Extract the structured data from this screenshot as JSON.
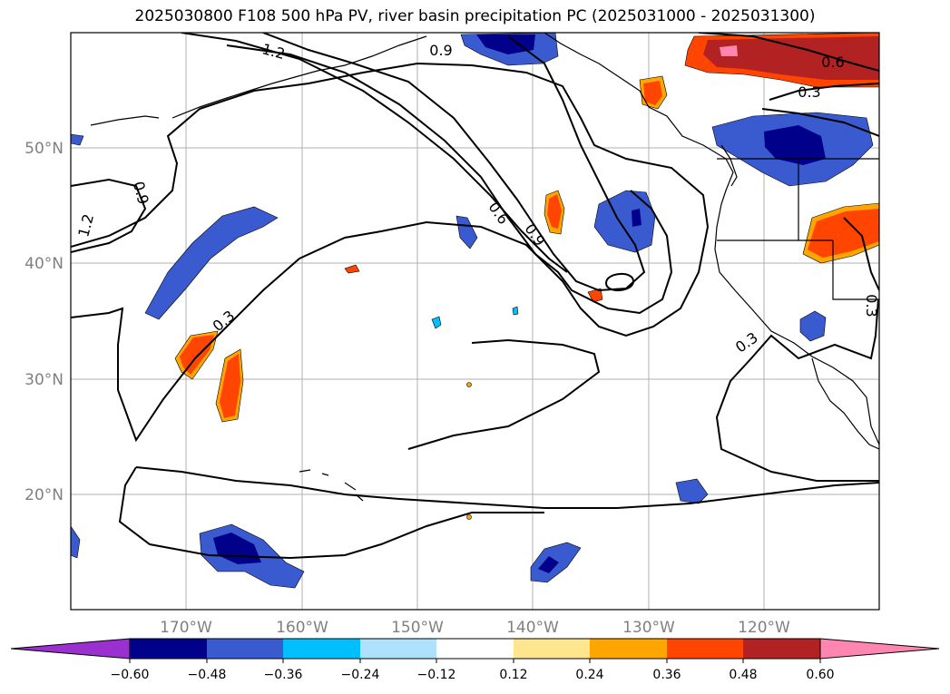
{
  "title": "2025030800 F108 500 hPa PV, river basin precipitation PC (2025031000 - 2025031300)",
  "map": {
    "lon_labels": [
      "170°W",
      "160°W",
      "150°W",
      "140°W",
      "130°W",
      "120°W"
    ],
    "lat_labels": [
      "50°N",
      "40°N",
      "30°N",
      "20°N"
    ],
    "contour_labels": [
      "1.2",
      "0.9",
      "0.9",
      "1.2",
      "0.3",
      "0.6",
      "0.9",
      "0.6",
      "0.3",
      "0.3",
      "0.3"
    ]
  },
  "colorbar": {
    "ticks": [
      "−0.60",
      "−0.48",
      "−0.36",
      "−0.24",
      "−0.12",
      "0.12",
      "0.24",
      "0.36",
      "0.48",
      "0.60"
    ],
    "colors": [
      "#9b30d0",
      "#00008b",
      "#3a5bd0",
      "#00bfff",
      "#aee1fb",
      "#ffffff",
      "#fde68e",
      "#ffa500",
      "#ff4500",
      "#b22222",
      "#ff86b0"
    ]
  }
}
